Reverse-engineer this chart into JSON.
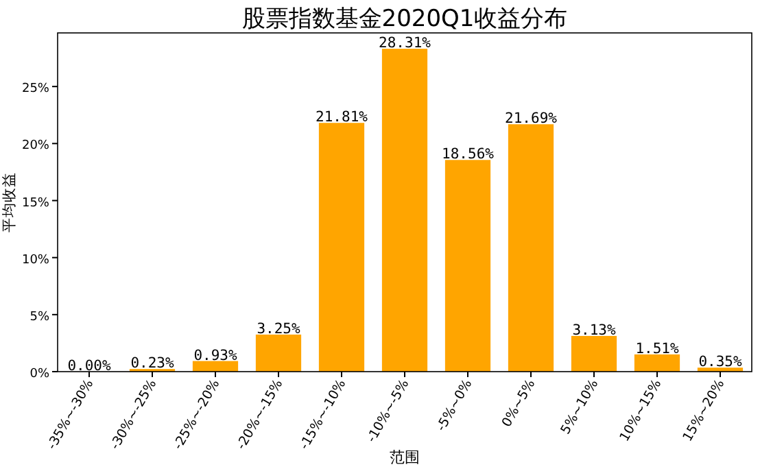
{
  "chart_data": {
    "type": "bar",
    "title": "股票指数基金2020Q1收益分布",
    "xlabel": "范围",
    "ylabel": "平均收益",
    "categories": [
      "-35%~-30%",
      "-30%~-25%",
      "-25%~-20%",
      "-20%~-15%",
      "-15%~-10%",
      "-10%~-5%",
      "-5%~0%",
      "0%~5%",
      "5%~10%",
      "10%~15%",
      "15%~20%"
    ],
    "values": [
      0.0,
      0.23,
      0.93,
      3.25,
      21.81,
      28.31,
      18.56,
      21.69,
      3.13,
      1.51,
      0.35
    ],
    "value_labels": [
      "0.00%",
      "0.23%",
      "0.93%",
      "3.25%",
      "21.81%",
      "28.31%",
      "18.56%",
      "21.69%",
      "3.13%",
      "1.51%",
      "0.35%"
    ],
    "color": "#ffa500",
    "ylim": [
      0,
      29.7
    ],
    "yticks": [
      {
        "value": 0,
        "label": "0%"
      },
      {
        "value": 5,
        "label": "5%"
      },
      {
        "value": 10,
        "label": "10%"
      },
      {
        "value": 15,
        "label": "15%"
      },
      {
        "value": 20,
        "label": "20%"
      },
      {
        "value": 25,
        "label": "25%"
      }
    ],
    "grid": false
  }
}
